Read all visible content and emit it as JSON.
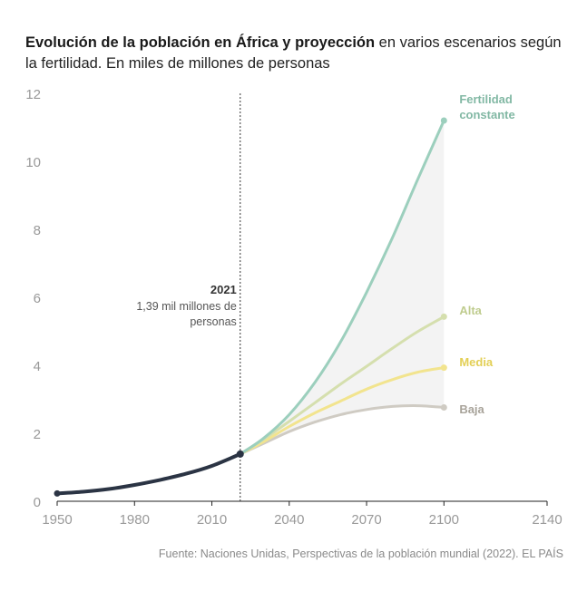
{
  "header": {
    "title_bold": "Evolución de la población en África y proyección",
    "title_rest": " en varios escenarios según la fertilidad. En miles de millones de personas"
  },
  "source": "Fuente: Naciones Unidas, Perspectivas de la población mundial (2022). EL PAÍS",
  "annotation": {
    "year": "2021",
    "line1": "1,39 mil millones de",
    "line2": "personas"
  },
  "colors": {
    "historical": "#2b3444",
    "fertilidad_constante": "#9ccfbd",
    "alta": "#d5dfae",
    "media": "#f2e48e",
    "baja": "#cfcbc3",
    "label_constante": "#82b8a4",
    "label_alta": "#bfcc8e",
    "label_media": "#e3cf55",
    "label_baja": "#a8a39a"
  },
  "chart_data": {
    "type": "line",
    "title": "Evolución de la población en África y proyección en varios escenarios según la fertilidad. En miles de millones de personas",
    "xlim": [
      1950,
      2140
    ],
    "ylim": [
      0,
      12
    ],
    "xticks": [
      1950,
      1980,
      2010,
      2040,
      2070,
      2100,
      2140
    ],
    "yticks": [
      0,
      2,
      4,
      6,
      8,
      10,
      12
    ],
    "grid": false,
    "series": [
      {
        "key": "historical",
        "name": "",
        "points": [
          [
            1950,
            0.23
          ],
          [
            1960,
            0.28
          ],
          [
            1970,
            0.36
          ],
          [
            1980,
            0.48
          ],
          [
            1990,
            0.63
          ],
          [
            2000,
            0.81
          ],
          [
            2010,
            1.04
          ],
          [
            2021,
            1.39
          ]
        ]
      },
      {
        "key": "fertilidad_constante",
        "name": "Fertilidad constante",
        "points": [
          [
            2021,
            1.39
          ],
          [
            2030,
            1.85
          ],
          [
            2040,
            2.55
          ],
          [
            2050,
            3.5
          ],
          [
            2060,
            4.7
          ],
          [
            2070,
            6.15
          ],
          [
            2080,
            7.75
          ],
          [
            2090,
            9.5
          ],
          [
            2100,
            11.2
          ]
        ]
      },
      {
        "key": "alta",
        "name": "Alta",
        "points": [
          [
            2021,
            1.39
          ],
          [
            2030,
            1.82
          ],
          [
            2040,
            2.35
          ],
          [
            2050,
            2.9
          ],
          [
            2060,
            3.45
          ],
          [
            2070,
            3.97
          ],
          [
            2080,
            4.5
          ],
          [
            2090,
            5.0
          ],
          [
            2100,
            5.43
          ]
        ]
      },
      {
        "key": "media",
        "name": "Media",
        "points": [
          [
            2021,
            1.39
          ],
          [
            2030,
            1.75
          ],
          [
            2040,
            2.2
          ],
          [
            2050,
            2.6
          ],
          [
            2060,
            2.95
          ],
          [
            2070,
            3.3
          ],
          [
            2080,
            3.58
          ],
          [
            2090,
            3.8
          ],
          [
            2100,
            3.93
          ]
        ]
      },
      {
        "key": "baja",
        "name": "Baja",
        "points": [
          [
            2021,
            1.39
          ],
          [
            2030,
            1.7
          ],
          [
            2040,
            2.05
          ],
          [
            2050,
            2.33
          ],
          [
            2060,
            2.55
          ],
          [
            2070,
            2.7
          ],
          [
            2080,
            2.79
          ],
          [
            2090,
            2.81
          ],
          [
            2100,
            2.76
          ]
        ]
      }
    ]
  }
}
